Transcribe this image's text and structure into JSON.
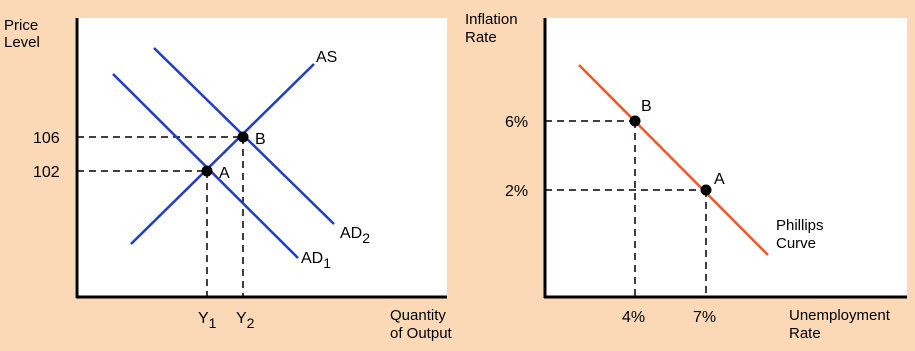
{
  "colors": {
    "background": "#FBD9B6",
    "panel": "#FFFFFF",
    "curve_blue": "#1F3CC7",
    "curve_orange": "#F0562A",
    "axis": "#000000"
  },
  "left_panel": {
    "y_axis_label_line1": "Price",
    "y_axis_label_line2": "Level",
    "x_axis_label_line1": "Quantity",
    "x_axis_label_line2": "of Output",
    "price_ticks": [
      "106",
      "102"
    ],
    "output_ticks": [
      {
        "base": "Y",
        "sub": "1"
      },
      {
        "base": "Y",
        "sub": "2"
      }
    ],
    "curves": {
      "as": "AS",
      "ad2": {
        "base": "AD",
        "sub": "2"
      },
      "ad1": {
        "base": "AD",
        "sub": "1"
      }
    },
    "points": {
      "a": "A",
      "b": "B"
    }
  },
  "right_panel": {
    "y_axis_label_line1": "Inflation",
    "y_axis_label_line2": "Rate",
    "x_axis_label_line1": "Unemployment",
    "x_axis_label_line2": "Rate",
    "inflation_ticks": [
      "6%",
      "2%"
    ],
    "unemployment_ticks": [
      "4%",
      "7%"
    ],
    "curve_label_line1": "Phillips",
    "curve_label_line2": "Curve",
    "points": {
      "a": "A",
      "b": "B"
    }
  }
}
